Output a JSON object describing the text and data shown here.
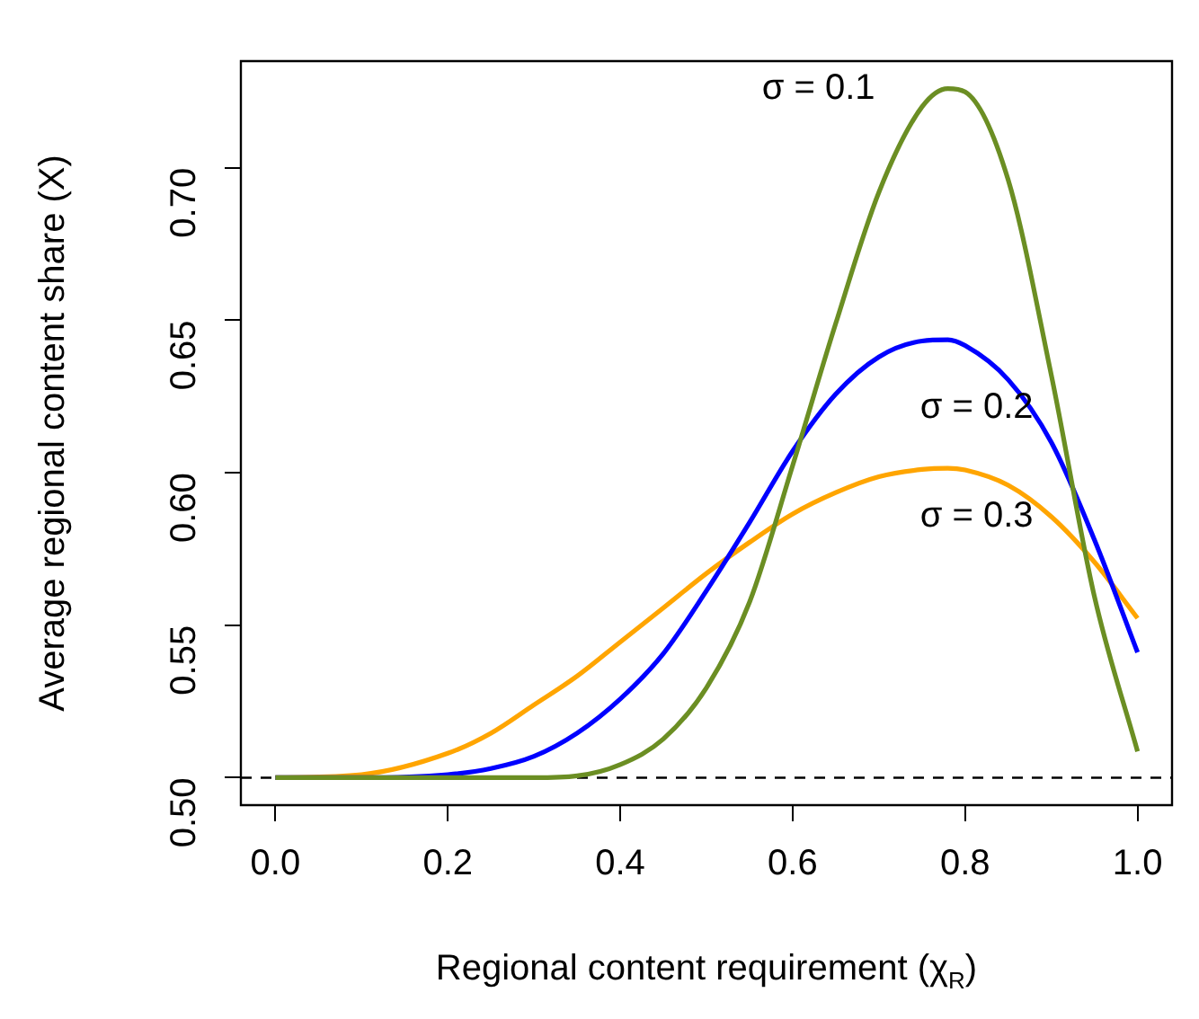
{
  "chart_data": {
    "type": "line",
    "xlabel": "Regional content requirement (χ$_{R}$)",
    "ylabel": "Average regional content share (X)",
    "xlim": [
      -0.04,
      1.04
    ],
    "xticks": [
      {
        "value": 0,
        "label": "0.0"
      },
      0.2,
      0.4,
      0.6,
      0.8,
      {
        "value": 1,
        "label": "1.0"
      }
    ],
    "ylim": [
      0.491,
      0.735
    ],
    "yticks": [
      {
        "value": 0.5,
        "label": "0.50"
      },
      0.55,
      {
        "value": 0.6,
        "label": "0.60"
      },
      0.65,
      {
        "value": 0.7,
        "label": "0.70"
      }
    ],
    "grid": false,
    "legend": false,
    "marker": "none",
    "line_style": "solid",
    "x": [
      0,
      0.1,
      0.2,
      0.25,
      0.3,
      0.35,
      0.4,
      0.45,
      0.5,
      0.55,
      0.6,
      0.65,
      0.7,
      0.75,
      0.78,
      0.8,
      0.85,
      0.9,
      0.95,
      1.0
    ],
    "series": [
      {
        "name": "σ = 0.1",
        "color": "#6b8e23",
        "values": [
          0.5,
          0.5,
          0.5,
          0.5,
          0.5,
          0.5006,
          0.5043,
          0.5127,
          0.5295,
          0.5576,
          0.6024,
          0.649,
          0.692,
          0.72,
          0.726,
          0.7249,
          0.696,
          0.632,
          0.5594,
          0.5086
        ]
      },
      {
        "name": "σ = 0.2",
        "color": "#0000ff",
        "values": [
          0.5,
          0.5,
          0.501,
          0.503,
          0.507,
          0.5146,
          0.5258,
          0.5407,
          0.5613,
          0.5837,
          0.6071,
          0.6258,
          0.638,
          0.6432,
          0.6436,
          0.6417,
          0.6305,
          0.61,
          0.578,
          0.5411
        ]
      },
      {
        "name": "σ = 0.3",
        "color": "#ffa500",
        "values": [
          0.5,
          0.501,
          0.508,
          0.5146,
          0.5239,
          0.5333,
          0.5445,
          0.5557,
          0.567,
          0.5772,
          0.5865,
          0.5935,
          0.5987,
          0.6011,
          0.6015,
          0.6009,
          0.5959,
          0.5856,
          0.5707,
          0.5523
        ]
      }
    ],
    "ref_lines": [
      {
        "axis": "y",
        "value": 0.5,
        "color": "#000000",
        "line_style": "dashed"
      }
    ]
  }
}
